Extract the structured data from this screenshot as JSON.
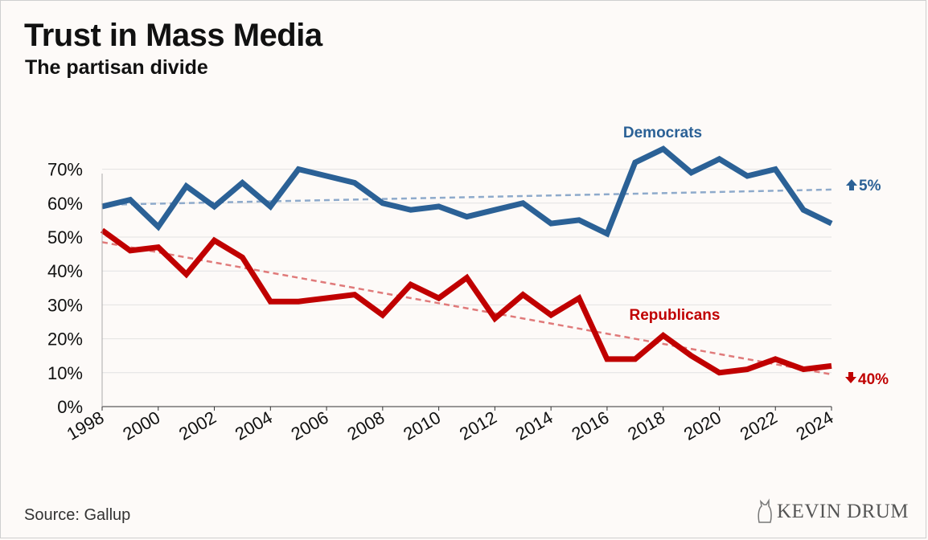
{
  "title": "Trust in Mass Media",
  "subtitle": "The partisan divide",
  "source": "Source: Gallup",
  "brand": "KEVIN DRUM",
  "colors": {
    "democrats": "#2b6196",
    "democrats_trend": "#8eaacb",
    "republicans": "#c00000",
    "republicans_trend": "#e07a7a",
    "grid": "#e2e2e2",
    "axis": "#333333"
  },
  "chart_data": {
    "type": "line",
    "title": "Trust in Mass Media",
    "subtitle": "The partisan divide",
    "xlim": [
      1998,
      2024
    ],
    "ylim": [
      0,
      70
    ],
    "x_ticks": [
      "1998",
      "2000",
      "2002",
      "2004",
      "2006",
      "2008",
      "2010",
      "2012",
      "2014",
      "2016",
      "2018",
      "2020",
      "2022",
      "2024"
    ],
    "y_ticks": [
      "0%",
      "10%",
      "20%",
      "30%",
      "40%",
      "50%",
      "60%",
      "70%"
    ],
    "x": [
      1998,
      1999,
      2000,
      2001,
      2002,
      2003,
      2004,
      2005,
      2006,
      2007,
      2008,
      2009,
      2010,
      2011,
      2012,
      2013,
      2014,
      2015,
      2016,
      2017,
      2018,
      2019,
      2020,
      2021,
      2022,
      2023,
      2024
    ],
    "series": [
      {
        "name": "Democrats",
        "color": "#2b6196",
        "values": [
          59,
          61,
          53,
          65,
          59,
          66,
          59,
          70,
          68,
          66,
          60,
          58,
          59,
          56,
          58,
          60,
          54,
          55,
          51,
          72,
          76,
          69,
          73,
          68,
          70,
          58,
          54
        ],
        "trend": [
          59.5,
          64
        ]
      },
      {
        "name": "Republicans",
        "color": "#c00000",
        "values": [
          52,
          46,
          47,
          39,
          49,
          44,
          31,
          31,
          32,
          33,
          27,
          36,
          32,
          38,
          26,
          33,
          27,
          32,
          14,
          14,
          21,
          15,
          10,
          11,
          14,
          11,
          12
        ],
        "trend": [
          48.5,
          9.5
        ]
      }
    ],
    "annotations": [
      {
        "series": "Democrats",
        "label": "Democrats",
        "change": "5%",
        "direction": "up"
      },
      {
        "series": "Republicans",
        "label": "Republicans",
        "change": "40%",
        "direction": "down"
      }
    ],
    "grid": true
  }
}
